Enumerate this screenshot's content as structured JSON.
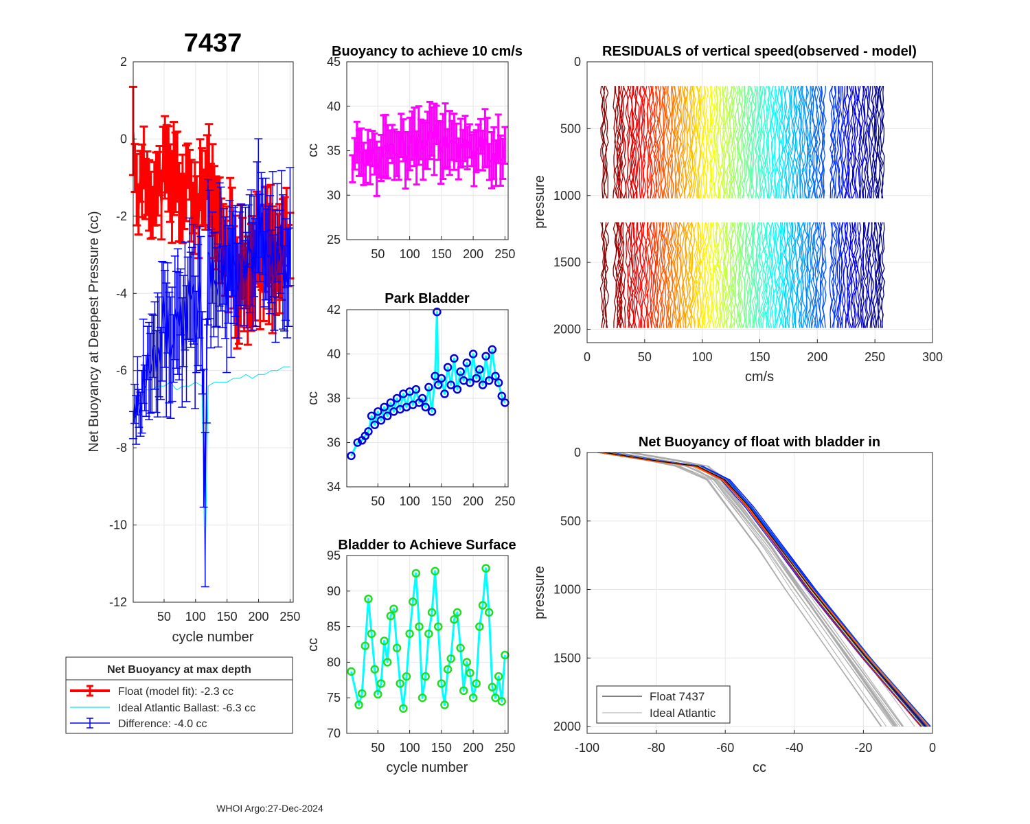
{
  "figure": {
    "title": "7437",
    "footer": "WHOI Argo:27-Dec-2024"
  },
  "chart_data": [
    {
      "id": "net_buoyancy",
      "type": "line",
      "title": "7437",
      "xlabel": "cycle number",
      "ylabel": "Net Buoyancy at Deepest Pressure (cc)",
      "xlim": [
        1,
        255
      ],
      "ylim": [
        -12,
        2
      ],
      "xticks": [
        50,
        100,
        150,
        200,
        250
      ],
      "yticks": [
        -12,
        -10,
        -8,
        -6,
        -4,
        -2,
        0,
        2
      ],
      "grid": true,
      "legend_title": "Net Buoyancy at max depth",
      "series": [
        {
          "name": "Float (model fit):  -2.3 cc",
          "color": "#ff0000",
          "style": "errorbar",
          "x": [
            1,
            10,
            20,
            30,
            40,
            50,
            60,
            70,
            80,
            90,
            100,
            110,
            120,
            130,
            140,
            150,
            160,
            170,
            180,
            190,
            200,
            210,
            220,
            230,
            240,
            250
          ],
          "values": [
            0.0,
            -1.5,
            -1.0,
            -1.2,
            -1.5,
            -0.8,
            -1.3,
            -1.0,
            -1.6,
            -1.2,
            -1.8,
            -1.5,
            -1.4,
            -2.0,
            -2.4,
            -3.0,
            -3.2,
            -3.5,
            -3.3,
            -3.8,
            -2.8,
            -3.1,
            -2.7,
            -3.2,
            -3.0,
            -2.4
          ],
          "err": [
            1.0,
            0.8,
            0.9,
            0.8,
            1.0,
            1.1,
            1.0,
            1.2,
            1.0,
            0.9,
            1.1,
            1.0,
            1.3,
            1.2,
            1.1,
            1.2,
            1.3,
            1.4,
            1.2,
            1.3,
            1.5,
            1.3,
            1.6,
            1.4,
            1.2,
            1.3
          ]
        },
        {
          "name": "Ideal Atlantic Ballast:  -6.3 cc",
          "color": "#00e5ee",
          "style": "line",
          "x": [
            1,
            10,
            20,
            30,
            40,
            50,
            60,
            70,
            80,
            90,
            100,
            110,
            115,
            120,
            130,
            140,
            150,
            160,
            170,
            180,
            190,
            200,
            210,
            220,
            230,
            240,
            250
          ],
          "values": [
            -7.4,
            -6.8,
            -6.5,
            -6.5,
            -6.4,
            -6.4,
            -6.3,
            -6.5,
            -6.4,
            -6.4,
            -6.3,
            -6.4,
            -11.3,
            -6.4,
            -6.3,
            -6.3,
            -6.3,
            -6.2,
            -6.2,
            -6.1,
            -6.2,
            -6.1,
            -6.1,
            -6.0,
            -6.0,
            -5.9,
            -5.9
          ]
        },
        {
          "name": "Difference:  -4.0 cc",
          "color": "#0000ff",
          "style": "errorbar",
          "x": [
            1,
            10,
            20,
            30,
            40,
            50,
            60,
            70,
            80,
            90,
            100,
            110,
            115,
            120,
            130,
            140,
            150,
            160,
            170,
            180,
            190,
            200,
            210,
            220,
            230,
            240,
            250
          ],
          "values": [
            -7.2,
            -6.6,
            -6.3,
            -5.8,
            -5.2,
            -4.8,
            -4.9,
            -4.6,
            -5.1,
            -4.2,
            -4.7,
            -4.3,
            -10.1,
            -3.4,
            -3.6,
            -3.2,
            -3.8,
            -3.1,
            -3.5,
            -2.8,
            -3.3,
            -2.5,
            -3.0,
            -3.4,
            -2.6,
            -3.1,
            -3.0
          ],
          "err": [
            0.3,
            0.8,
            1.0,
            1.2,
            1.4,
            1.5,
            1.5,
            1.4,
            1.3,
            1.4,
            1.5,
            1.5,
            1.7,
            1.6,
            1.5,
            1.4,
            1.4,
            1.4,
            1.5,
            1.3,
            1.4,
            1.5,
            1.4,
            1.4,
            1.5,
            1.5,
            1.6
          ]
        }
      ]
    },
    {
      "id": "buoyancy_10cms",
      "type": "line",
      "title": "Buoyancy to achieve 10 cm/s",
      "xlabel": "",
      "ylabel": "cc",
      "xlim": [
        1,
        255
      ],
      "ylim": [
        25,
        45
      ],
      "xticks": [
        50,
        100,
        150,
        200,
        250
      ],
      "yticks": [
        25,
        30,
        35,
        40,
        45
      ],
      "grid": true,
      "series": [
        {
          "name": "buoyancy",
          "color": "#ff00ff",
          "style": "errorbar",
          "x": [
            10,
            20,
            30,
            40,
            50,
            60,
            70,
            80,
            90,
            100,
            110,
            120,
            130,
            140,
            150,
            160,
            170,
            180,
            190,
            200,
            210,
            220,
            230,
            240,
            250
          ],
          "values": [
            33.5,
            35.0,
            34.5,
            35.2,
            34.0,
            35.5,
            34.8,
            35.8,
            35.0,
            36.0,
            35.4,
            36.2,
            35.6,
            36.8,
            35.9,
            36.4,
            35.0,
            35.8,
            35.2,
            34.8,
            35.6,
            35.0,
            34.5,
            35.3,
            34.2
          ],
          "err": [
            2.5,
            2.8,
            2.6,
            2.7,
            2.6,
            3.0,
            2.5,
            3.0,
            2.8,
            3.5,
            2.8,
            3.2,
            3.0,
            3.6,
            3.0,
            3.2,
            2.8,
            3.0,
            2.9,
            2.8,
            3.1,
            2.9,
            3.0,
            3.2,
            2.9
          ]
        }
      ]
    },
    {
      "id": "park_bladder",
      "type": "line",
      "title": "Park Bladder",
      "xlabel": "",
      "ylabel": "cc",
      "xlim": [
        1,
        255
      ],
      "ylim": [
        34,
        42
      ],
      "xticks": [
        50,
        100,
        150,
        200,
        250
      ],
      "yticks": [
        34,
        36,
        38,
        40,
        42
      ],
      "grid": true,
      "series": [
        {
          "name": "park bladder",
          "color": "#00ffff",
          "marker_color": "#0000dd",
          "style": "line-marker",
          "x": [
            8,
            18,
            25,
            30,
            35,
            40,
            45,
            50,
            55,
            60,
            65,
            70,
            75,
            80,
            85,
            90,
            95,
            100,
            105,
            110,
            115,
            120,
            125,
            130,
            135,
            140,
            143,
            145,
            150,
            155,
            160,
            165,
            170,
            175,
            180,
            185,
            190,
            195,
            200,
            205,
            210,
            215,
            220,
            225,
            230,
            235,
            240,
            245,
            250
          ],
          "values": [
            35.4,
            36.0,
            36.1,
            36.3,
            36.5,
            37.2,
            36.8,
            37.4,
            37.0,
            37.6,
            37.2,
            37.8,
            37.4,
            38.0,
            37.5,
            38.2,
            37.6,
            38.3,
            37.7,
            38.4,
            37.8,
            38.0,
            37.6,
            38.5,
            37.4,
            39.0,
            41.9,
            38.6,
            38.9,
            38.2,
            39.4,
            38.6,
            39.8,
            38.4,
            39.2,
            38.8,
            39.6,
            38.7,
            40.0,
            38.9,
            39.3,
            38.6,
            39.9,
            38.8,
            40.2,
            39.0,
            38.7,
            38.1,
            37.8
          ]
        }
      ]
    },
    {
      "id": "bladder_surface",
      "type": "line",
      "title": "Bladder to Achieve Surface",
      "xlabel": "cycle number",
      "ylabel": "cc",
      "xlim": [
        1,
        255
      ],
      "ylim": [
        70,
        95
      ],
      "xticks": [
        50,
        100,
        150,
        200,
        250
      ],
      "yticks": [
        70,
        75,
        80,
        85,
        90,
        95
      ],
      "grid": true,
      "series": [
        {
          "name": "bladder surface",
          "color": "#00ffff",
          "marker_color": "#22dd22",
          "style": "line-marker",
          "x": [
            8,
            20,
            25,
            30,
            35,
            40,
            45,
            50,
            55,
            60,
            65,
            70,
            75,
            80,
            85,
            90,
            95,
            100,
            105,
            110,
            115,
            120,
            125,
            130,
            135,
            140,
            145,
            150,
            155,
            160,
            165,
            170,
            175,
            180,
            185,
            190,
            195,
            200,
            205,
            210,
            215,
            220,
            225,
            230,
            235,
            240,
            245,
            250
          ],
          "values": [
            78.7,
            74.0,
            75.6,
            82.3,
            88.9,
            84.0,
            79.0,
            75.5,
            77.0,
            83.0,
            80.0,
            86.5,
            87.5,
            82.0,
            77.0,
            73.5,
            78.0,
            84.0,
            88.5,
            92.5,
            85.0,
            75.0,
            78.0,
            84.0,
            87.0,
            92.8,
            85.0,
            77.0,
            74.0,
            79.0,
            80.5,
            86.0,
            87.0,
            82.0,
            76.0,
            80.0,
            78.5,
            75.0,
            77.0,
            85.0,
            88.0,
            93.2,
            87.0,
            76.5,
            75.0,
            78.0,
            74.5,
            81.0
          ]
        }
      ]
    },
    {
      "id": "residuals",
      "type": "line",
      "title": "RESIDUALS of vertical speed(observed - model)",
      "xlabel": "cm/s",
      "ylabel": "pressure",
      "xlim": [
        0,
        300
      ],
      "ylim": [
        0,
        2100
      ],
      "y_reversed": true,
      "xticks": [
        0,
        50,
        100,
        150,
        200,
        250,
        300
      ],
      "yticks": [
        0,
        500,
        1000,
        1500,
        2000
      ],
      "grid": true,
      "profile_offsets_cms": [
        13,
        24,
        28,
        35,
        40,
        46,
        52,
        58,
        64,
        70,
        76,
        82,
        88,
        94,
        100,
        106,
        112,
        118,
        124,
        130,
        136,
        142,
        148,
        154,
        160,
        166,
        172,
        178,
        184,
        190,
        196,
        202,
        212,
        218,
        224,
        230,
        236,
        242,
        248,
        253
      ],
      "pressure_segments": [
        [
          180,
          1020
        ],
        [
          1200,
          1990
        ]
      ]
    },
    {
      "id": "net_buoyancy_profile",
      "type": "line",
      "title": "Net Buoyancy of float with bladder in",
      "xlabel": "cc",
      "ylabel": "pressure",
      "xlim": [
        -100,
        0
      ],
      "ylim": [
        0,
        2050
      ],
      "y_reversed": true,
      "xticks": [
        -100,
        -80,
        -60,
        -40,
        -20,
        0
      ],
      "yticks": [
        0,
        500,
        1000,
        1500,
        2000
      ],
      "grid": true,
      "legend": [
        "Float 7437",
        "Ideal Atlantic"
      ],
      "series": [
        {
          "name": "Float 7437",
          "color": "#000000",
          "pressure": [
            0,
            60,
            100,
            200,
            400,
            700,
            1000,
            1500,
            2000
          ],
          "values": [
            -95,
            -80,
            -68,
            -60,
            -53,
            -44,
            -35,
            -19,
            -2
          ]
        },
        {
          "name": "Ideal Atlantic",
          "color": "#aaaaaa",
          "pressure": [
            0,
            60,
            100,
            200,
            400,
            700,
            1000,
            1500,
            2000
          ],
          "values": [
            -92,
            -78,
            -70,
            -63,
            -57,
            -48,
            -40,
            -26,
            -12
          ]
        }
      ]
    }
  ]
}
